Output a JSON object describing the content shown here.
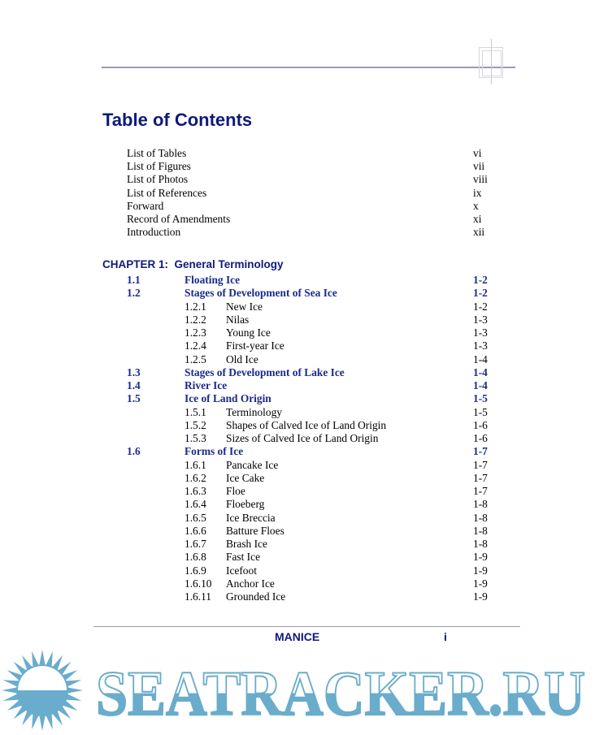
{
  "title": "Table of Contents",
  "front_matter": [
    {
      "title": "List of Tables",
      "page": "vi"
    },
    {
      "title": "List of Figures",
      "page": "vii"
    },
    {
      "title": "List of Photos",
      "page": "viii"
    },
    {
      "title": "List of References",
      "page": "ix"
    },
    {
      "title": "Forward",
      "page": "x"
    },
    {
      "title": "Record of Amendments",
      "page": "xi"
    },
    {
      "title": "Introduction",
      "page": "xii"
    }
  ],
  "chapter": {
    "label": "CHAPTER 1:  General Terminology"
  },
  "entries": [
    {
      "level": 1,
      "num": "1.1",
      "title": "Floating Ice",
      "page": "1-2"
    },
    {
      "level": 1,
      "num": "1.2",
      "title": "Stages of Development of Sea Ice",
      "page": "1-2"
    },
    {
      "level": 2,
      "num": "1.2.1",
      "title": "New Ice",
      "page": "1-2"
    },
    {
      "level": 2,
      "num": "1.2.2",
      "title": "Nilas",
      "page": "1-3"
    },
    {
      "level": 2,
      "num": "1.2.3",
      "title": "Young Ice",
      "page": "1-3"
    },
    {
      "level": 2,
      "num": "1.2.4",
      "title": "First-year Ice",
      "page": "1-3"
    },
    {
      "level": 2,
      "num": "1.2.5",
      "title": "Old Ice",
      "page": "1-4"
    },
    {
      "level": 1,
      "num": "1.3",
      "title": "Stages of Development of Lake Ice",
      "page": "1-4"
    },
    {
      "level": 1,
      "num": "1.4",
      "title": "River Ice",
      "page": "1-4"
    },
    {
      "level": 1,
      "num": "1.5",
      "title": "Ice of Land Origin",
      "page": "1-5"
    },
    {
      "level": 2,
      "num": "1.5.1",
      "title": "Terminology",
      "page": "1-5"
    },
    {
      "level": 2,
      "num": "1.5.2",
      "title": "Shapes of Calved Ice of Land Origin",
      "page": "1-6"
    },
    {
      "level": 2,
      "num": "1.5.3",
      "title": "Sizes of Calved Ice of Land Origin",
      "page": "1-6"
    },
    {
      "level": 1,
      "num": "1.6",
      "title": "Forms of Ice",
      "page": "1-7"
    },
    {
      "level": 2,
      "num": "1.6.1",
      "title": "Pancake Ice",
      "page": "1-7"
    },
    {
      "level": 2,
      "num": "1.6.2",
      "title": "Ice Cake",
      "page": "1-7"
    },
    {
      "level": 2,
      "num": "1.6.3",
      "title": "Floe",
      "page": "1-7"
    },
    {
      "level": 2,
      "num": "1.6.4",
      "title": "Floeberg",
      "page": "1-8"
    },
    {
      "level": 2,
      "num": "1.6.5",
      "title": "Ice Breccia",
      "page": "1-8"
    },
    {
      "level": 2,
      "num": "1.6.6",
      "title": "Batture Floes",
      "page": "1-8"
    },
    {
      "level": 2,
      "num": "1.6.7",
      "title": "Brash Ice",
      "page": "1-8"
    },
    {
      "level": 2,
      "num": "1.6.8",
      "title": "Fast Ice",
      "page": "1-9"
    },
    {
      "level": 2,
      "num": "1.6.9",
      "title": "Icefoot",
      "page": "1-9"
    },
    {
      "level": 2,
      "num": "1.6.10",
      "title": "Anchor Ice",
      "page": "1-9"
    },
    {
      "level": 2,
      "num": "1.6.11",
      "title": "Grounded Ice",
      "page": "1-9"
    }
  ],
  "footer": {
    "title": "MANICE",
    "page": "i"
  },
  "watermark": {
    "text": "SEATRACKER.RU",
    "color": "#6aaccc"
  },
  "colors": {
    "heading": "#0e1a7a",
    "section": "#1b2a8a",
    "rule": "#9a98bf"
  }
}
